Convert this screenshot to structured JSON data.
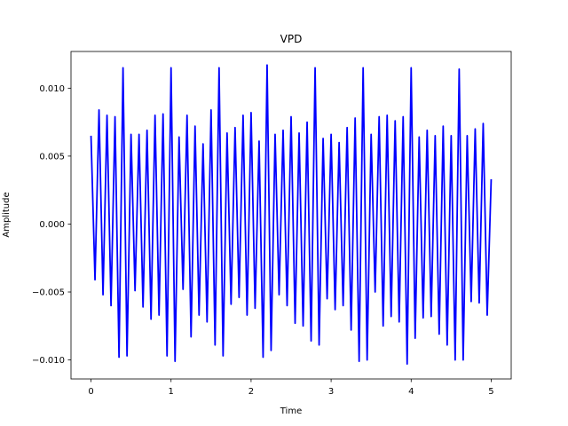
{
  "chart_data": {
    "type": "line",
    "title": "VPD",
    "x_label": "Time",
    "y_label": "Amplitude",
    "color": "#0000ff",
    "grid": false,
    "xlim": [
      -0.25,
      5.25
    ],
    "ylim": [
      -0.0114,
      0.0127
    ],
    "xticks": [
      0,
      1,
      2,
      3,
      4,
      5
    ],
    "yticks": [
      {
        "value": -0.01,
        "label": "−0.010"
      },
      {
        "value": -0.005,
        "label": "−0.005"
      },
      {
        "value": 0,
        "label": "0.000"
      },
      {
        "value": 0.005,
        "label": "0.005"
      },
      {
        "value": 0.01,
        "label": "0.010"
      }
    ],
    "x": [
      0,
      0.05,
      0.1,
      0.15,
      0.2,
      0.25,
      0.3,
      0.35,
      0.4,
      0.45,
      0.5,
      0.55,
      0.6,
      0.65,
      0.7,
      0.75,
      0.8,
      0.85,
      0.9,
      0.95,
      1.0,
      1.05,
      1.1,
      1.15,
      1.2,
      1.25,
      1.3,
      1.35,
      1.4,
      1.45,
      1.5,
      1.55,
      1.6,
      1.65,
      1.7,
      1.75,
      1.8,
      1.85,
      1.9,
      1.95,
      2.0,
      2.05,
      2.1,
      2.15,
      2.2,
      2.25,
      2.3,
      2.35,
      2.4,
      2.45,
      2.5,
      2.55,
      2.6,
      2.65,
      2.7,
      2.75,
      2.8,
      2.85,
      2.9,
      2.95,
      3.0,
      3.05,
      3.1,
      3.15,
      3.2,
      3.25,
      3.3,
      3.35,
      3.4,
      3.45,
      3.5,
      3.55,
      3.6,
      3.65,
      3.7,
      3.75,
      3.8,
      3.85,
      3.9,
      3.95,
      4.0,
      4.05,
      4.1,
      4.15,
      4.2,
      4.25,
      4.3,
      4.35,
      4.4,
      4.45,
      4.5,
      4.55,
      4.6,
      4.65,
      4.7,
      4.75,
      4.8,
      4.85,
      4.9,
      4.95,
      5.0
    ],
    "values": [
      0.0065,
      -0.0041,
      0.0084,
      -0.0052,
      0.008,
      -0.006,
      0.0079,
      -0.0098,
      0.0115,
      -0.0097,
      0.0066,
      -0.0049,
      0.0066,
      -0.0061,
      0.0069,
      -0.007,
      0.008,
      -0.0067,
      0.0081,
      -0.0097,
      0.0115,
      -0.0101,
      0.0064,
      -0.0048,
      0.008,
      -0.0083,
      0.0072,
      -0.0067,
      0.0059,
      -0.0072,
      0.0084,
      -0.0089,
      0.0115,
      -0.0097,
      0.0067,
      -0.0059,
      0.0071,
      -0.0054,
      0.008,
      -0.0067,
      0.0082,
      -0.0062,
      0.0061,
      -0.0098,
      0.0117,
      -0.0093,
      0.0066,
      -0.0052,
      0.0069,
      -0.006,
      0.0079,
      -0.0073,
      0.0067,
      -0.0075,
      0.0075,
      -0.0086,
      0.0115,
      -0.0089,
      0.0063,
      -0.0055,
      0.0066,
      -0.0063,
      0.006,
      -0.006,
      0.0071,
      -0.0078,
      0.0078,
      -0.0101,
      0.0115,
      -0.01,
      0.0066,
      -0.005,
      0.0079,
      -0.0075,
      0.008,
      -0.0068,
      0.0076,
      -0.0072,
      0.0079,
      -0.0103,
      0.0115,
      -0.0084,
      0.0064,
      -0.0069,
      0.0069,
      -0.0068,
      0.0065,
      -0.0081,
      0.0072,
      -0.0089,
      0.0065,
      -0.01,
      0.0114,
      -0.01,
      0.0065,
      -0.0057,
      0.007,
      -0.0058,
      0.0074,
      -0.0067,
      0.0033
    ]
  }
}
